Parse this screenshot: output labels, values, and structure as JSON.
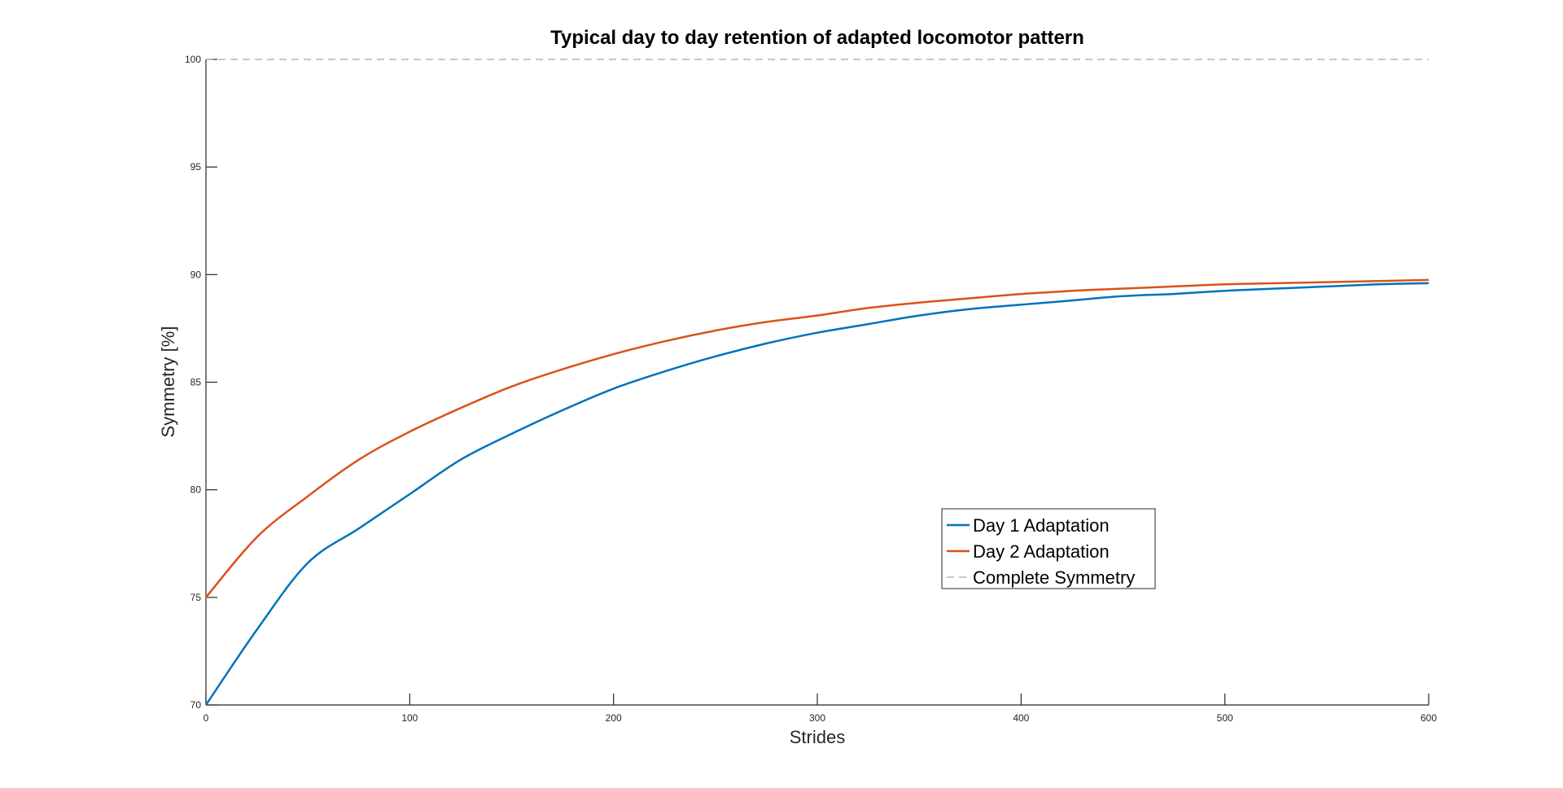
{
  "chart_data": {
    "type": "line",
    "title": "Typical day to day retention of adapted locomotor pattern",
    "xlabel": "Strides",
    "ylabel": "Symmetry [%]",
    "xlim": [
      0,
      600
    ],
    "ylim": [
      70,
      100
    ],
    "xticks": [
      0,
      100,
      200,
      300,
      400,
      500,
      600
    ],
    "yticks": [
      70,
      75,
      80,
      85,
      90,
      95,
      100
    ],
    "grid": false,
    "legend_position": "center-right",
    "x": [
      0,
      25,
      50,
      75,
      100,
      125,
      150,
      175,
      200,
      225,
      250,
      275,
      300,
      325,
      350,
      375,
      400,
      425,
      450,
      475,
      500,
      525,
      550,
      575,
      600
    ],
    "series": [
      {
        "name": "Day 1 Adaptation",
        "color": "#0072BD",
        "style": "solid",
        "values": [
          70.0,
          73.5,
          76.6,
          78.2,
          79.8,
          81.4,
          82.6,
          83.7,
          84.7,
          85.5,
          86.2,
          86.8,
          87.3,
          87.7,
          88.1,
          88.4,
          88.6,
          88.8,
          89.0,
          89.1,
          89.25,
          89.35,
          89.45,
          89.55,
          89.6
        ]
      },
      {
        "name": "Day 2 Adaptation",
        "color": "#D95319",
        "style": "solid",
        "values": [
          75.0,
          77.8,
          79.7,
          81.4,
          82.7,
          83.8,
          84.8,
          85.6,
          86.3,
          86.9,
          87.4,
          87.8,
          88.1,
          88.45,
          88.7,
          88.9,
          89.1,
          89.25,
          89.35,
          89.45,
          89.55,
          89.6,
          89.65,
          89.7,
          89.75
        ]
      },
      {
        "name": "Complete Symmetry",
        "color": "#a6a6a6",
        "style": "dashed",
        "values": [
          100,
          100,
          100,
          100,
          100,
          100,
          100,
          100,
          100,
          100,
          100,
          100,
          100,
          100,
          100,
          100,
          100,
          100,
          100,
          100,
          100,
          100,
          100,
          100,
          100
        ]
      }
    ]
  }
}
